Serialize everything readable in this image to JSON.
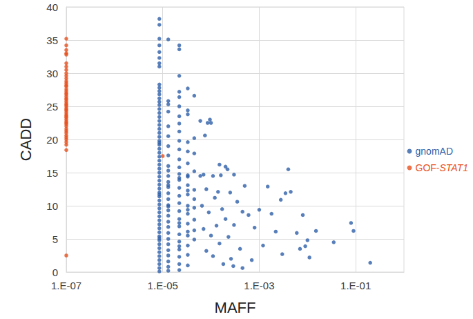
{
  "chart_data": {
    "type": "scatter",
    "x_label": "MAFF",
    "y_label": "CADD",
    "log": "x",
    "grid": true,
    "legend": "right",
    "marker": "circle",
    "xlim": [
      1e-07,
      1
    ],
    "xticks": [
      {
        "value": 1e-07,
        "label": "1.E-07"
      },
      {
        "value": 1e-05,
        "label": "1.E-05"
      },
      {
        "value": 0.001,
        "label": "1.E-03"
      },
      {
        "value": 0.1,
        "label": "1.E-01"
      }
    ],
    "ylim": [
      0,
      40
    ],
    "yticks": [
      0,
      5,
      10,
      15,
      20,
      25,
      30,
      35,
      40
    ],
    "series": [
      {
        "name": "gnomAD",
        "color": "#2e5fa8",
        "x": [
          8.5e-06,
          8.5e-06,
          8.5e-06,
          8.5e-06,
          8.5e-06,
          8.5e-06,
          8.5e-06,
          8.5e-06,
          8.5e-06,
          8.5e-06,
          8.5e-06,
          8.5e-06,
          8.5e-06,
          8.5e-06,
          8.5e-06,
          8.5e-06,
          8.5e-06,
          8.5e-06,
          8.5e-06,
          8.5e-06,
          8.5e-06,
          8.5e-06,
          8.5e-06,
          8.5e-06,
          8.5e-06,
          8.5e-06,
          8.5e-06,
          8.5e-06,
          8.5e-06,
          8.5e-06,
          8.5e-06,
          8.5e-06,
          8.5e-06,
          8.5e-06,
          8.5e-06,
          8.5e-06,
          8.5e-06,
          8.5e-06,
          8.5e-06,
          8.5e-06,
          8.5e-06,
          8.5e-06,
          8.5e-06,
          8.5e-06,
          8.5e-06,
          8.5e-06,
          8.5e-06,
          8.5e-06,
          8.5e-06,
          8.5e-06,
          8.5e-06,
          8.5e-06,
          8.5e-06,
          8.5e-06,
          8.5e-06,
          8.5e-06,
          8.5e-06,
          8.5e-06,
          8.5e-06,
          8.5e-06,
          1.3e-05,
          1.3e-05,
          1.3e-05,
          1.3e-05,
          1.3e-05,
          1.3e-05,
          1.3e-05,
          1.3e-05,
          1.3e-05,
          1.3e-05,
          1.3e-05,
          1.3e-05,
          1.3e-05,
          1.3e-05,
          1.3e-05,
          1.3e-05,
          1.3e-05,
          1.3e-05,
          1.3e-05,
          1.3e-05,
          1.3e-05,
          1.3e-05,
          1.3e-05,
          1.3e-05,
          1.3e-05,
          1.3e-05,
          1.3e-05,
          1.3e-05,
          1.3e-05,
          1.3e-05,
          2.2e-05,
          2.2e-05,
          2.2e-05,
          2.2e-05,
          2.2e-05,
          2.2e-05,
          2.2e-05,
          2.2e-05,
          2.2e-05,
          2.2e-05,
          2.2e-05,
          2.2e-05,
          2.2e-05,
          2.2e-05,
          2.2e-05,
          2.2e-05,
          2.2e-05,
          2.2e-05,
          2.2e-05,
          2.2e-05,
          2.2e-05,
          2.2e-05,
          2.2e-05,
          2.2e-05,
          2.2e-05,
          2.2e-05,
          2.2e-05,
          2.2e-05,
          2.2e-05,
          2.2e-05,
          3.3e-05,
          3.3e-05,
          3.3e-05,
          3.3e-05,
          3.3e-05,
          3.3e-05,
          3.3e-05,
          3.3e-05,
          3.3e-05,
          3.3e-05,
          3.3e-05,
          3.3e-05,
          3.3e-05,
          3.3e-05,
          3.3e-05,
          3.3e-05,
          3.3e-05,
          3.3e-05,
          3.3e-05,
          3.3e-05,
          4.5e-05,
          4.5e-05,
          4.5e-05,
          4.5e-05,
          4.5e-05,
          4.5e-05,
          4.5e-05,
          4.5e-05,
          4.5e-05,
          4.5e-05,
          6e-05,
          7.5e-05,
          8.5e-05,
          9.5e-05,
          0.0001,
          7e-05,
          6e-05,
          8e-05,
          0.00011,
          6.5e-05,
          9e-05,
          0.00012,
          7e-05,
          0.0001,
          0.00013,
          8e-05,
          0.00011,
          0.00015,
          0.00016,
          0.00014,
          0.00017,
          0.00015,
          0.0002,
          0.00022,
          0.00025,
          0.0002,
          0.00023,
          0.00026,
          0.00018,
          0.0003,
          0.00035,
          0.0003,
          0.0004,
          0.00045,
          0.0005,
          0.0006,
          0.0007,
          0.0008,
          0.001,
          0.0012,
          0.0015,
          0.0018,
          0.0022,
          0.0028,
          0.003,
          0.0035,
          0.004,
          0.0045,
          0.006,
          0.008,
          0.007,
          0.009,
          0.01,
          0.011,
          0.015,
          0.035,
          0.00045,
          0.00029,
          0.08,
          0.09,
          0.2
        ],
        "values": [
          38.2,
          37.3,
          35.2,
          34.2,
          33.2,
          32.3,
          31.5,
          31.0,
          28.3,
          27.8,
          27.3,
          26.8,
          26.2,
          25.7,
          25.2,
          24.6,
          24.0,
          23.4,
          22.8,
          22.2,
          21.6,
          21.0,
          20.4,
          19.8,
          19.2,
          18.6,
          18.0,
          17.4,
          16.8,
          16.2,
          15.6,
          15.0,
          14.4,
          13.8,
          13.2,
          12.6,
          12.0,
          11.4,
          10.8,
          10.2,
          9.6,
          9.0,
          8.4,
          7.8,
          7.2,
          6.6,
          6.0,
          5.4,
          4.8,
          4.2,
          3.6,
          3.0,
          2.4,
          1.8,
          1.2,
          0.6,
          0.1,
          5.1,
          11.7,
          19.5,
          35.1,
          25.8,
          25.3,
          24.2,
          22.0,
          20.5,
          19.0,
          17.6,
          16.0,
          15.3,
          14.5,
          13.6,
          12.8,
          11.9,
          11.0,
          10.1,
          9.3,
          8.5,
          7.6,
          6.8,
          5.9,
          5.0,
          4.2,
          3.3,
          2.5,
          1.6,
          0.8,
          0.2,
          13.1,
          9.9,
          34.2,
          33.6,
          29.6,
          27.2,
          26.4,
          25.0,
          23.5,
          22.4,
          21.2,
          19.8,
          18.5,
          17.0,
          15.8,
          14.8,
          13.9,
          12.7,
          11.5,
          10.4,
          9.2,
          8.0,
          6.9,
          5.7,
          4.6,
          3.4,
          2.3,
          1.2,
          0.3,
          14.2,
          7.4,
          3.9,
          27.7,
          24.4,
          23.8,
          19.6,
          18.2,
          16.4,
          14.6,
          13.1,
          11.7,
          10.0,
          8.8,
          7.3,
          5.5,
          4.0,
          2.6,
          1.0,
          14.4,
          6.1,
          9.4,
          12.3,
          26.6,
          20.2,
          17.9,
          15.2,
          12.4,
          11.0,
          9.7,
          7.9,
          6.3,
          4.9,
          22.8,
          20.6,
          22.5,
          23.0,
          22.5,
          14.7,
          14.5,
          12.5,
          14.5,
          10.0,
          9.0,
          11.2,
          6.5,
          5.5,
          7.0,
          3.2,
          2.4,
          16.2,
          14.6,
          12.1,
          9.5,
          4.3,
          15.9,
          15.5,
          12.0,
          8.0,
          5.3,
          2.0,
          1.2,
          14.7,
          10.6,
          7.1,
          3.5,
          9.1,
          13.0,
          8.6,
          1.8,
          6.7,
          9.4,
          4.0,
          12.9,
          8.8,
          6.1,
          10.9,
          2.7,
          11.9,
          15.5,
          12.1,
          5.9,
          8.6,
          3.5,
          3.9,
          4.8,
          2.2,
          6.2,
          4.5,
          0.6,
          0.9,
          7.4,
          6.2,
          1.4
        ]
      },
      {
        "name": "GOF-STAT1",
        "color": "#e8501e",
        "x": [
          1e-07,
          1e-07,
          1e-07,
          1e-07,
          1e-07,
          1e-07,
          1e-07,
          1e-07,
          1e-07,
          1e-07,
          1e-07,
          1e-07,
          1e-07,
          1e-07,
          1e-07,
          1e-07,
          1e-07,
          1e-07,
          1e-07,
          1e-07,
          1e-07,
          1e-07,
          1e-07,
          1e-07,
          1e-07,
          1e-07,
          1e-07,
          1e-07,
          1e-07,
          1e-07,
          1e-07,
          1e-07,
          1e-07,
          1e-07,
          1e-07,
          1e-07,
          1e-07,
          1e-07,
          1e-07,
          1e-07,
          1e-07,
          1e-07,
          1e-07,
          1e-07,
          1e-07,
          1e-07,
          1e-07,
          1e-07,
          1e-05
        ],
        "values": [
          35.2,
          34.2,
          33.5,
          33.0,
          32.8,
          31.5,
          31.0,
          30.5,
          30.0,
          29.6,
          29.2,
          28.8,
          28.5,
          28.2,
          28.0,
          27.6,
          27.3,
          27.0,
          26.8,
          26.5,
          26.2,
          26.0,
          25.7,
          25.4,
          25.2,
          25.0,
          24.7,
          24.5,
          24.3,
          24.0,
          23.7,
          23.5,
          23.3,
          23.0,
          22.7,
          22.5,
          22.3,
          22.0,
          21.6,
          21.3,
          21.0,
          20.6,
          20.3,
          20.0,
          19.6,
          19.2,
          18.4,
          2.5,
          17.5
        ]
      }
    ]
  }
}
